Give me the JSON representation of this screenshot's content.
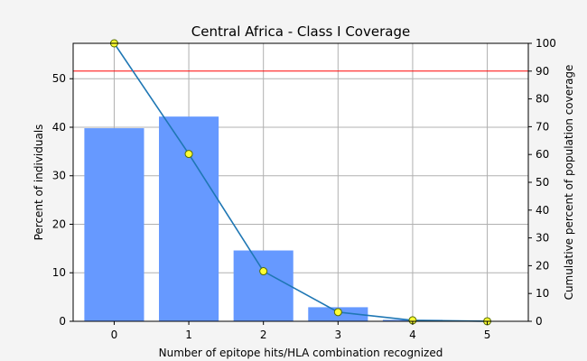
{
  "chart_data": {
    "type": "bar",
    "title": "Central Africa - Class I Coverage",
    "xlabel": "Number of epitope hits/HLA combination recognized",
    "ylabel_left": "Percent of individuals",
    "ylabel_right": "Cumulative percent of population coverage",
    "categories": [
      0,
      1,
      2,
      3,
      4,
      5
    ],
    "bars": {
      "name": "Percent of individuals",
      "values": [
        39.8,
        42.2,
        14.6,
        2.9,
        0.3,
        0.02
      ],
      "color": "#6699ff"
    },
    "line": {
      "name": "Cumulative percent of population coverage",
      "values": [
        100,
        60.2,
        18.0,
        3.3,
        0.35,
        0.02
      ],
      "color": "#1f77b4",
      "marker_color": "#ffff33"
    },
    "reference_line": {
      "value_right_axis": 90,
      "color": "#ff0000"
    },
    "xlim": [
      -0.55,
      5.55
    ],
    "ylim_left": [
      0,
      57.3
    ],
    "ylim_right": [
      0,
      100
    ],
    "xticks": [
      0,
      1,
      2,
      3,
      4,
      5
    ],
    "yticks_left": [
      0,
      10,
      20,
      30,
      40,
      50
    ],
    "yticks_right": [
      0,
      10,
      20,
      30,
      40,
      50,
      60,
      70,
      80,
      90,
      100
    ],
    "grid": true,
    "legend": "none"
  }
}
